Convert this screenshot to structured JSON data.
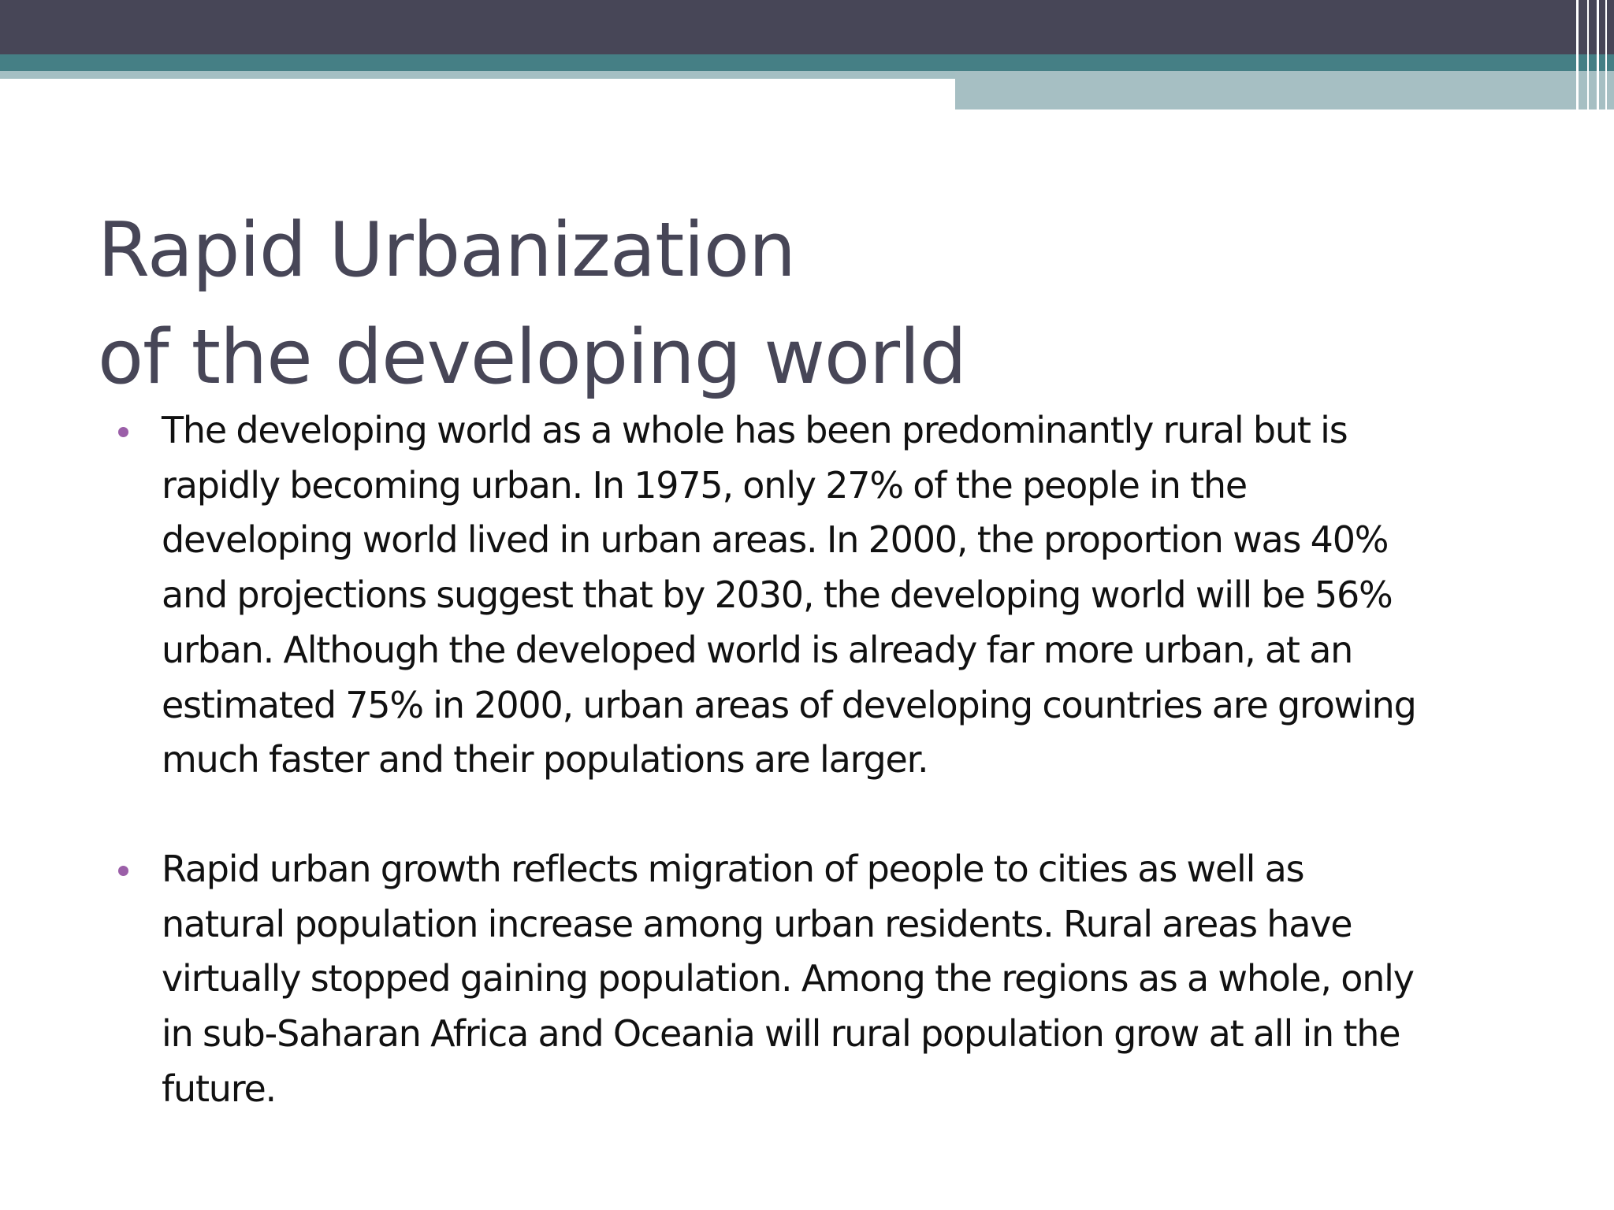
{
  "slide": {
    "title_lines": [
      "Rapid Urbanization",
      "of the developing world"
    ],
    "bullets": [
      {
        "lines": [
          "The developing world as a whole has been predominantly rural but is",
          "rapidly becoming urban. In 1975, only 27% of the people in the",
          "developing world lived in urban areas. In 2000, the proportion was 40%",
          "and projections suggest that by 2030, the developing world will be 56%",
          "urban. Although the developed world is already far more urban, at an",
          "estimated 75% in 2000, urban areas of developing countries are growing",
          "much faster and their populations are larger."
        ]
      },
      {
        "lines": [
          "Rapid urban growth reflects migration of people to cities as well as",
          "natural population increase among urban residents. Rural areas have",
          "virtually stopped gaining population. Among the regions as a whole, only",
          "in sub-Saharan Africa and Oceania will rural population grow at all in the",
          "future."
        ]
      }
    ]
  },
  "colors": {
    "top_band": "#474657",
    "teal_band": "#457f85",
    "light_band": "#a6bfc3",
    "title": "#474657",
    "bullet_marker": "#9b5fa8",
    "body_text": "#111111"
  }
}
